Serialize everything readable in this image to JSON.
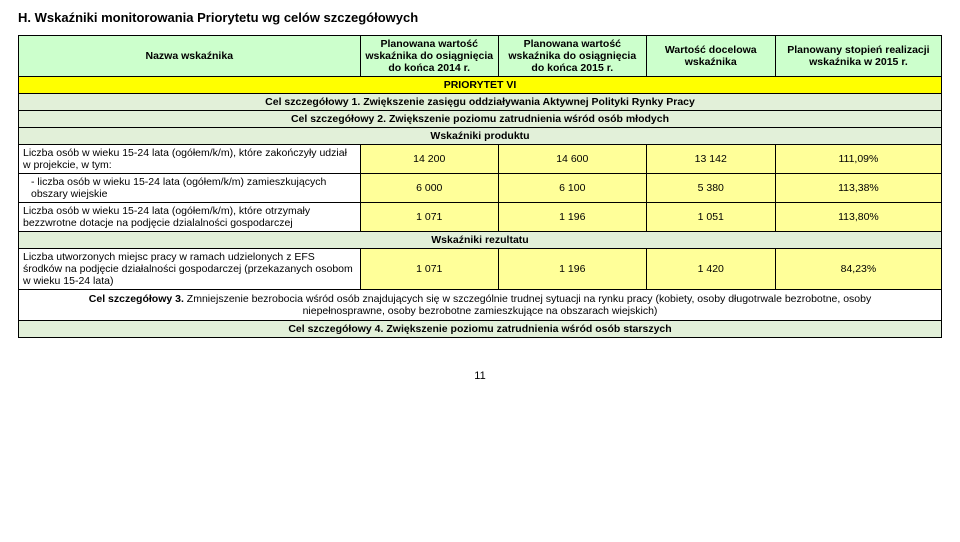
{
  "section_title": "H. Wskaźniki monitorowania Priorytetu wg celów szczegółowych",
  "page_number": "11",
  "colors": {
    "yellow": "#ffff00",
    "light_yellow": "#ffff99",
    "light_green": "#ccffcc",
    "paler_green": "#e2f0d9",
    "border": "#000000"
  },
  "header": {
    "name": "Nazwa wskaźnika",
    "col1": "Planowana wartość wskaźnika do osiągnięcia do końca 2014 r.",
    "col2": "Planowana wartość wskaźnika do osiągnięcia do końca 2015 r.",
    "col3": "Wartość docelowa wskaźnika",
    "col4": "Planowany stopień realizacji wskaźnika w 2015 r."
  },
  "priority_row": "PRIORYTET VI",
  "goals": {
    "g1": "Cel szczegółowy 1. Zwiększenie zasięgu oddziaływania Aktywnej Polityki Rynky Pracy",
    "g2": "Cel szczegółowy 2. Zwiększenie poziomu zatrudnienia wśród osób młodych",
    "g3_prefix": "Cel szczegółowy 3.",
    "g3_text": " Zmniejszenie bezrobocia wśród osób znajdujących się w szczególnie trudnej sytuacji na rynku pracy (kobiety, osoby długotrwale bezrobotne, osoby niepełnosprawne, osoby bezrobotne zamieszkujące na obszarach wiejskich)",
    "g4": "Cel szczegółowy 4. Zwiększenie poziomu zatrudnienia wśród osób starszych"
  },
  "subheaders": {
    "produktu": "Wskaźniki produktu",
    "rezultatu": "Wskaźniki rezultatu"
  },
  "rows": [
    {
      "label": "Liczba osób w wieku 15-24 lata (ogółem/k/m), które zakończyły udział w projekcie, w tym:",
      "v1": "14 200",
      "v2": "14 600",
      "v3": "13 142",
      "v4": "111,09%"
    },
    {
      "label": "- liczba osób w wieku 15-24 lata (ogółem/k/m) zamieszkujących obszary wiejskie",
      "v1": "6 000",
      "v2": "6 100",
      "v3": "5 380",
      "v4": "113,38%",
      "indent": true
    },
    {
      "label": "Liczba osób w wieku 15-24 lata (ogółem/k/m), które otrzymały bezzwrotne dotacje na podjęcie dzialalności gospodarczej",
      "v1": "1 071",
      "v2": "1 196",
      "v3": "1 051",
      "v4": "113,80%"
    }
  ],
  "result_row": {
    "label": "Liczba utworzonych miejsc pracy w ramach udzielonych z EFS środków na podjęcie działalności gospodarczej (przekazanych osobom w wieku 15-24 lata)",
    "v1": "1 071",
    "v2": "1 196",
    "v3": "1 420",
    "v4": "84,23%"
  }
}
